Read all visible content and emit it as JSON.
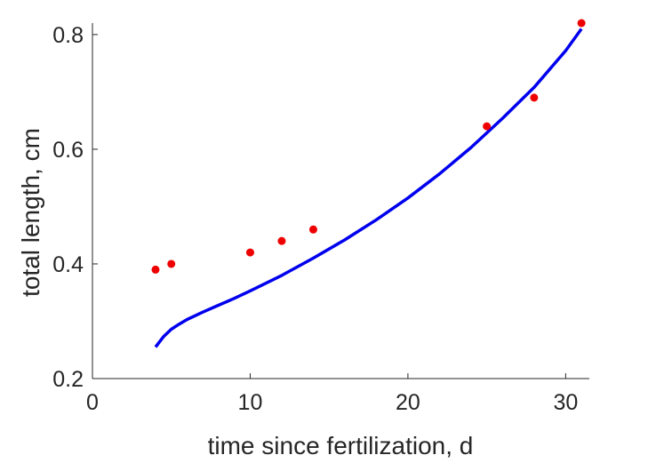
{
  "chart_data": {
    "type": "line",
    "title": "",
    "xlabel": "time since fertilization, d",
    "ylabel": "total length, cm",
    "xlim": [
      0,
      31.5
    ],
    "ylim": [
      0.2,
      0.82
    ],
    "xticks": [
      0,
      10,
      20,
      30
    ],
    "xtick_labels": [
      "0",
      "10",
      "20",
      "30"
    ],
    "yticks": [
      0.2,
      0.4,
      0.6,
      0.8
    ],
    "ytick_labels": [
      "0.2",
      "0.4",
      "0.6",
      "0.8"
    ],
    "grid": false,
    "series": [
      {
        "kind": "line",
        "color": "#0000ee",
        "x": [
          4,
          4.5,
          5,
          5.5,
          6,
          7,
          8,
          9,
          10,
          12,
          14,
          16,
          18,
          20,
          22,
          24,
          26,
          28,
          30,
          31
        ],
        "y": [
          0.255,
          0.273,
          0.286,
          0.295,
          0.303,
          0.316,
          0.328,
          0.34,
          0.353,
          0.38,
          0.41,
          0.442,
          0.477,
          0.515,
          0.557,
          0.603,
          0.654,
          0.708,
          0.772,
          0.81
        ]
      },
      {
        "kind": "scatter",
        "color": "#ee0000",
        "x": [
          4,
          5,
          10,
          12,
          14,
          25,
          28,
          31
        ],
        "y": [
          0.39,
          0.4,
          0.42,
          0.44,
          0.46,
          0.64,
          0.69,
          0.82
        ]
      }
    ]
  }
}
